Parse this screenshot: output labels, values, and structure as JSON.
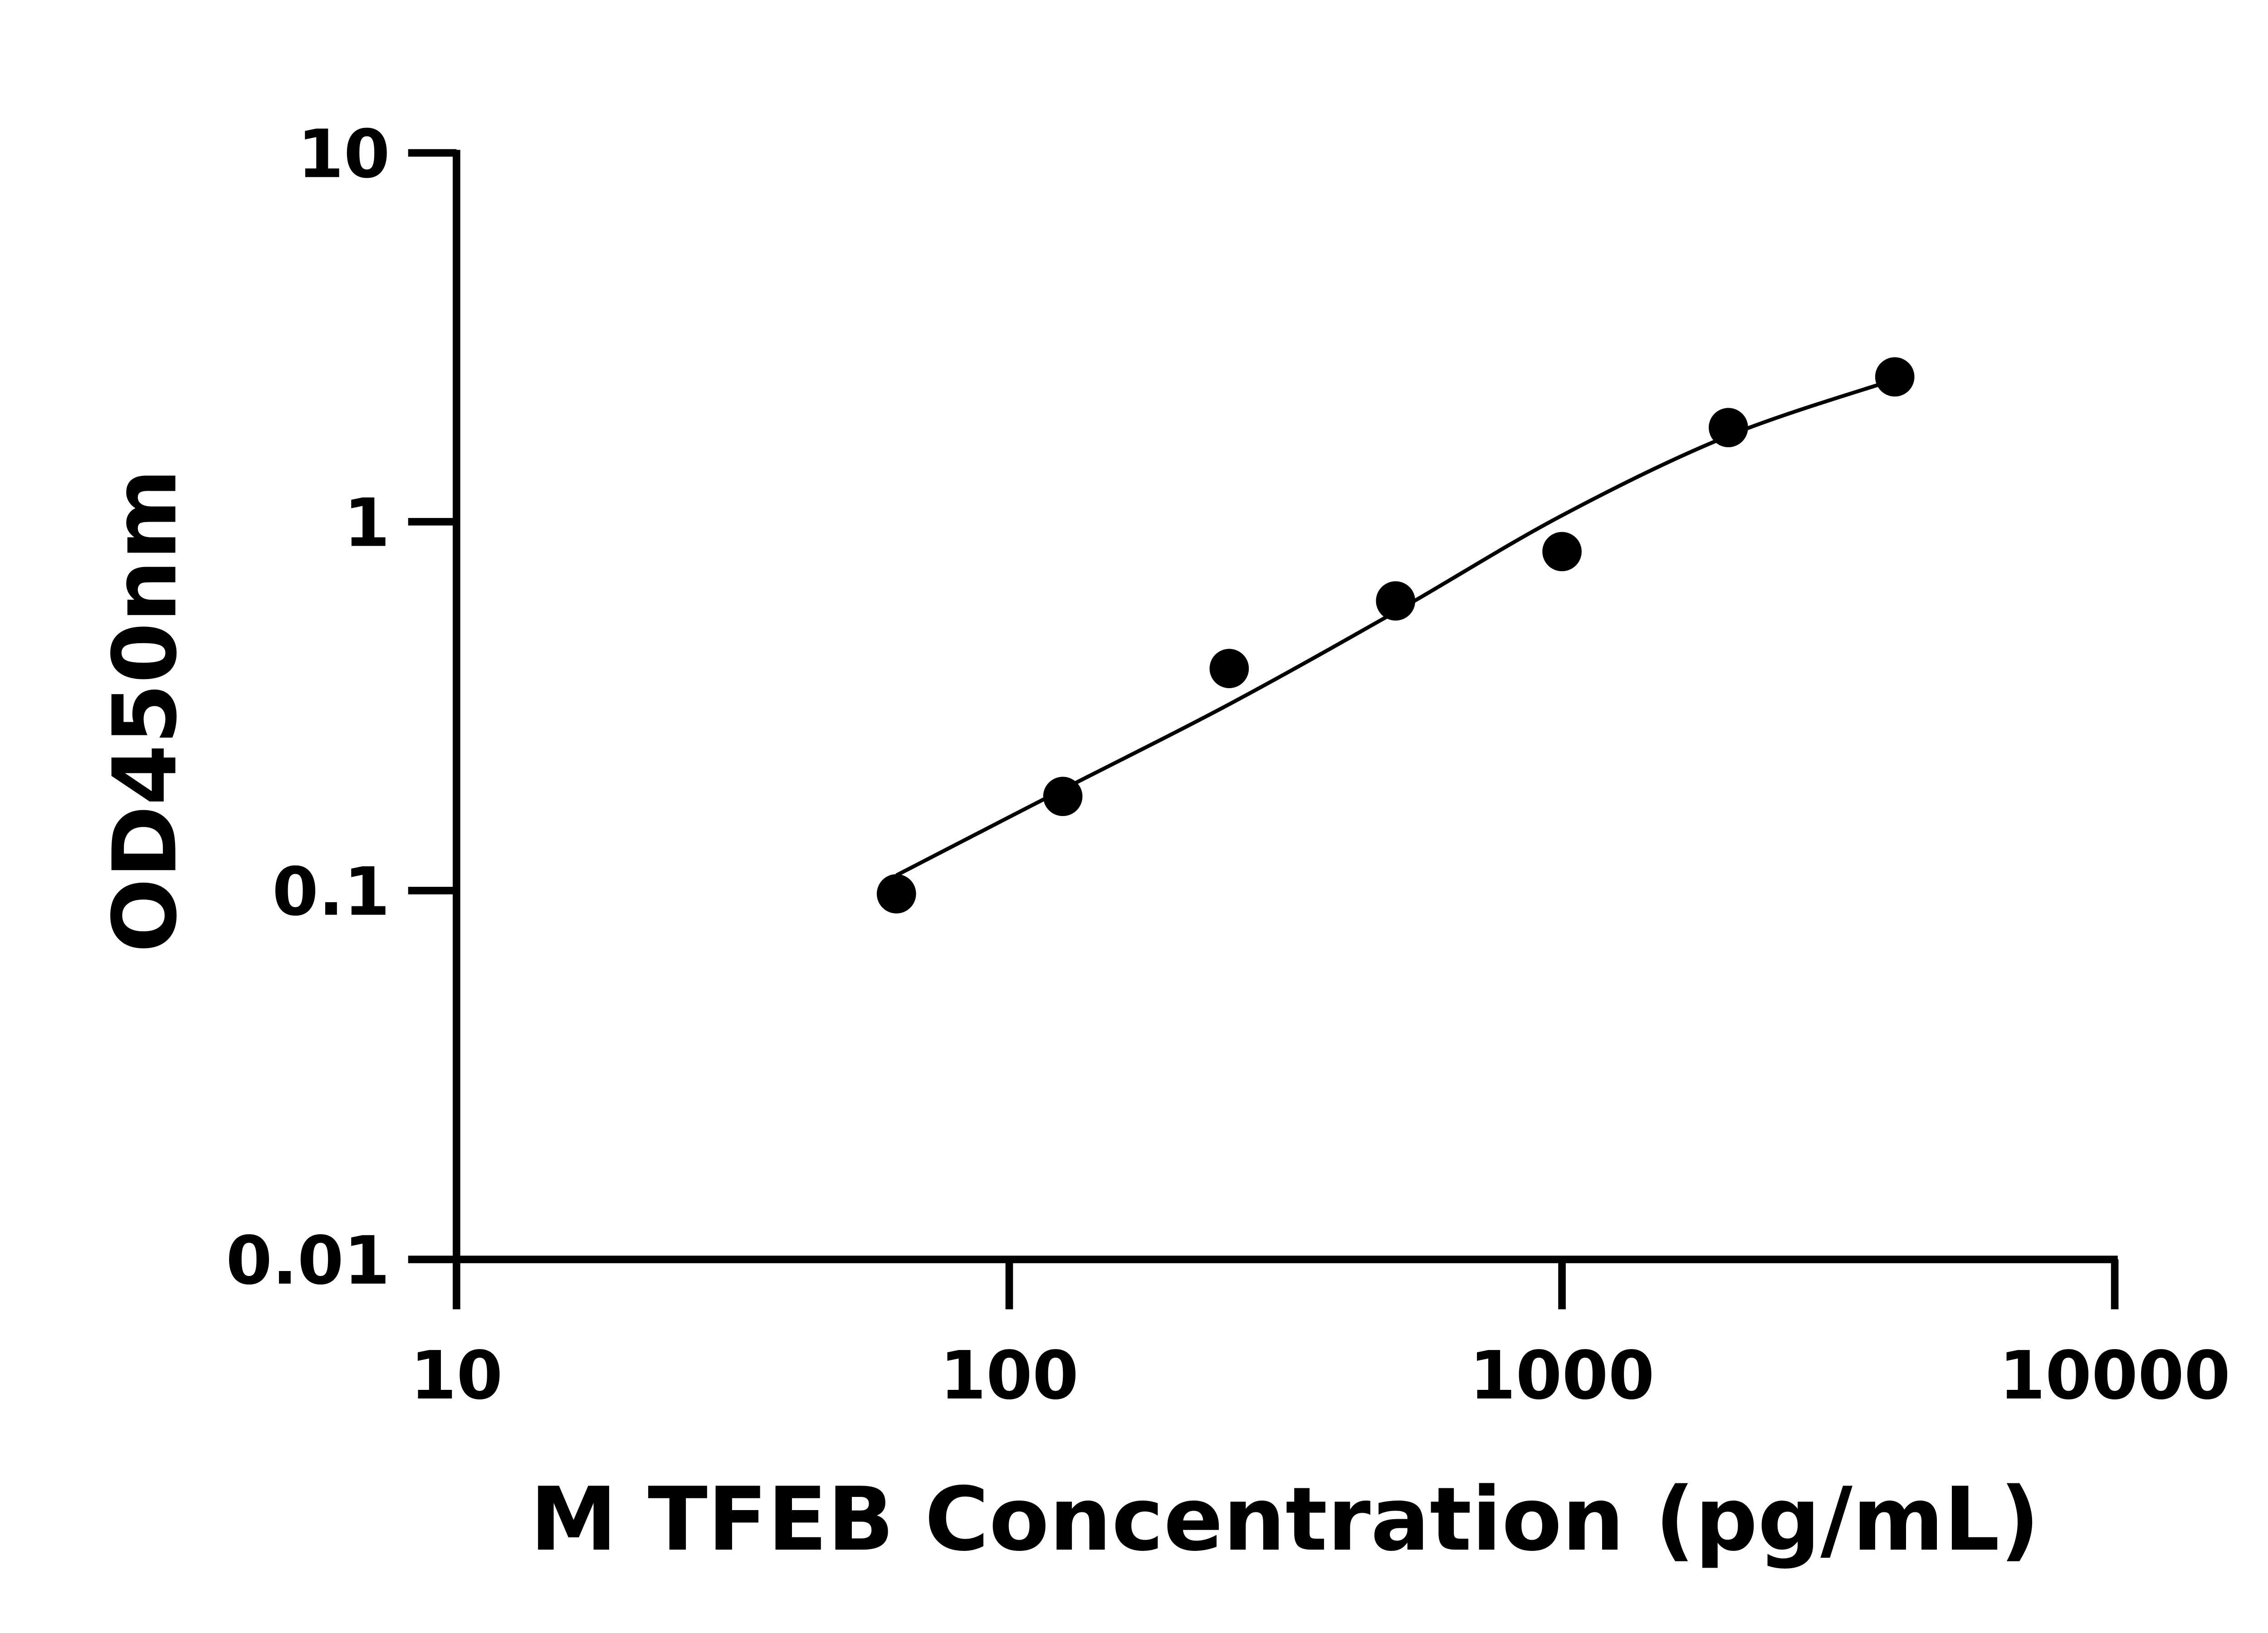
{
  "chart_data": {
    "type": "scatter",
    "title": "",
    "xlabel": "M TFEB Concentration (pg/mL)",
    "ylabel": "OD450nm",
    "xscale": "log",
    "yscale": "log",
    "xlim": [
      10,
      10000
    ],
    "ylim": [
      0.01,
      10
    ],
    "x_ticks": [
      "10",
      "100",
      "1000",
      "10000"
    ],
    "y_ticks": [
      "0.01",
      "0.1",
      "1",
      "10"
    ],
    "grid": false,
    "legend": "none",
    "marker_color": "#000000",
    "series": [
      {
        "x": [
          62.5,
          125,
          250,
          500,
          1000,
          2000,
          4000
        ],
        "y": [
          0.098,
          0.18,
          0.4,
          0.61,
          0.83,
          1.8,
          2.47
        ]
      }
    ],
    "fit_curve": {
      "x": [
        62.5,
        125,
        250,
        500,
        1000,
        2000,
        4000
      ],
      "y": [
        0.11,
        0.188,
        0.32,
        0.57,
        1.04,
        1.71,
        2.43
      ]
    }
  }
}
